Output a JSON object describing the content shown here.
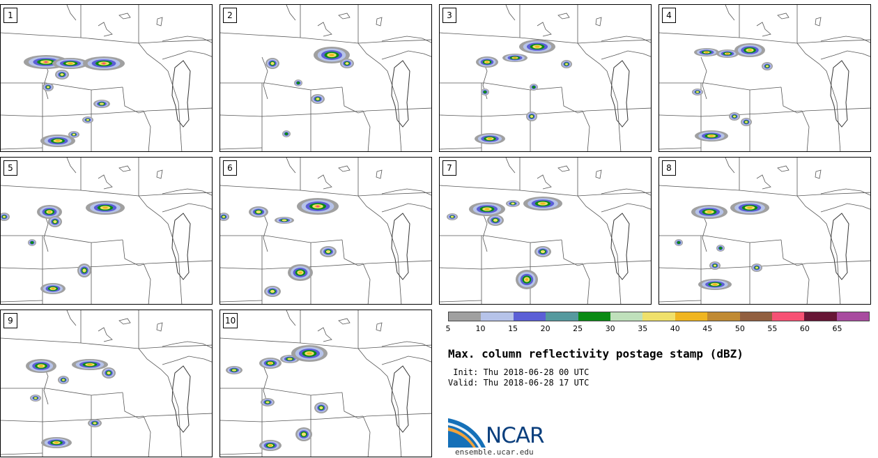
{
  "panels": [
    {
      "label": "1"
    },
    {
      "label": "2"
    },
    {
      "label": "3"
    },
    {
      "label": "4"
    },
    {
      "label": "5"
    },
    {
      "label": "6"
    },
    {
      "label": "7"
    },
    {
      "label": "8"
    },
    {
      "label": "9"
    },
    {
      "label": "10"
    }
  ],
  "colorbar": {
    "colors": [
      "#a0a0a0",
      "#b6c3e9",
      "#5b5fd6",
      "#55999e",
      "#0a8a14",
      "#bfe0bb",
      "#efe06b",
      "#efb521",
      "#c08a33",
      "#915f3f",
      "#f65174",
      "#671636",
      "#a84b9f"
    ],
    "ticks": [
      "5",
      "10",
      "15",
      "20",
      "25",
      "30",
      "35",
      "40",
      "45",
      "50",
      "55",
      "60",
      "65"
    ]
  },
  "title": "Max. column reflectivity postage stamp (dBZ)",
  "init_text": " Init: Thu 2018-06-28 00 UTC",
  "valid_text": "Valid: Thu 2018-06-28 17 UTC",
  "logo_text": "NCAR",
  "site_text": "ensemble.ucar.edu"
}
